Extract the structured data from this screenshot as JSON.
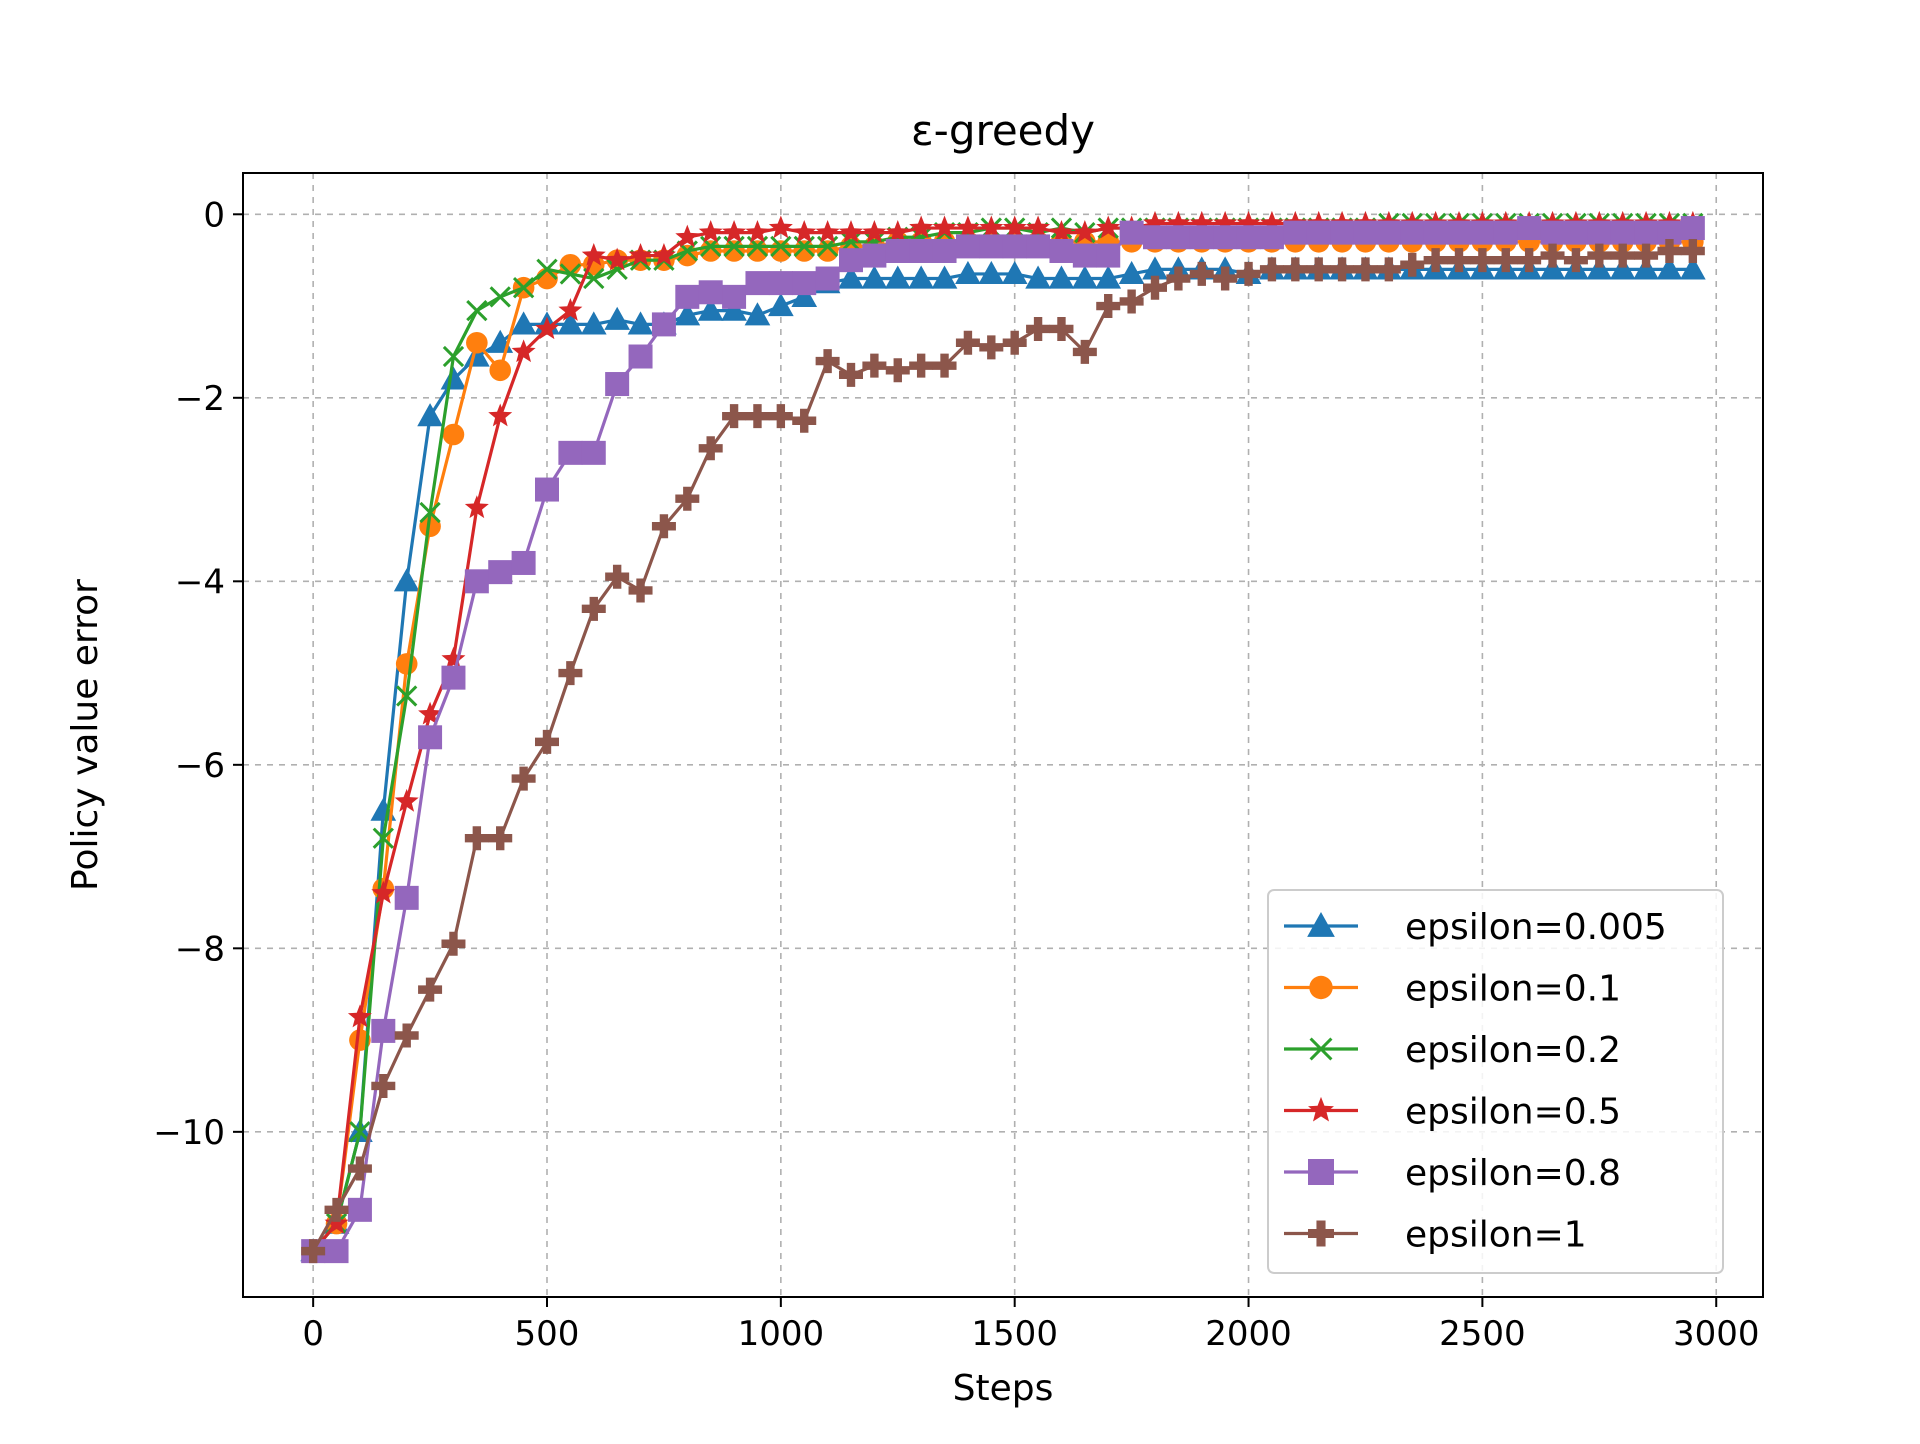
{
  "chart_data": {
    "type": "line",
    "title": "ε-greedy",
    "xlabel": "Steps",
    "ylabel": "Policy value error",
    "xlim": [
      -150,
      3100
    ],
    "ylim": [
      -11.8,
      0.45
    ],
    "xticks": [
      0,
      500,
      1000,
      1500,
      2000,
      2500,
      3000
    ],
    "xtick_labels": [
      "0",
      "500",
      "1000",
      "1500",
      "2000",
      "2500",
      "3000"
    ],
    "yticks": [
      0,
      -2,
      -4,
      -6,
      -8,
      -10
    ],
    "ytick_labels": [
      "0",
      "−2",
      "−4",
      "−6",
      "−8",
      "−10"
    ],
    "grid": true,
    "legend_position": "lower right",
    "x": [
      0,
      50,
      100,
      150,
      200,
      250,
      300,
      350,
      400,
      450,
      500,
      550,
      600,
      650,
      700,
      750,
      800,
      850,
      900,
      950,
      1000,
      1050,
      1100,
      1150,
      1200,
      1250,
      1300,
      1350,
      1400,
      1450,
      1500,
      1550,
      1600,
      1650,
      1700,
      1750,
      1800,
      1850,
      1900,
      1950,
      2000,
      2050,
      2100,
      2150,
      2200,
      2250,
      2300,
      2350,
      2400,
      2450,
      2500,
      2550,
      2600,
      2650,
      2700,
      2750,
      2800,
      2850,
      2900,
      2950
    ],
    "series": [
      {
        "name": "epsilon=0.005",
        "color": "#1f77b4",
        "marker": "triangle",
        "values": [
          -11.3,
          -11.0,
          -10.0,
          -6.5,
          -4.0,
          -2.2,
          -1.8,
          -1.55,
          -1.4,
          -1.2,
          -1.2,
          -1.2,
          -1.2,
          -1.15,
          -1.2,
          -1.2,
          -1.1,
          -1.05,
          -1.05,
          -1.1,
          -1.0,
          -0.9,
          -0.75,
          -0.7,
          -0.7,
          -0.7,
          -0.7,
          -0.7,
          -0.65,
          -0.65,
          -0.65,
          -0.7,
          -0.7,
          -0.7,
          -0.7,
          -0.65,
          -0.6,
          -0.6,
          -0.6,
          -0.6,
          -0.65,
          -0.6,
          -0.6,
          -0.6,
          -0.6,
          -0.6,
          -0.6,
          -0.6,
          -0.6,
          -0.6,
          -0.6,
          -0.6,
          -0.6,
          -0.6,
          -0.6,
          -0.6,
          -0.6,
          -0.6,
          -0.6,
          -0.6
        ]
      },
      {
        "name": "epsilon=0.1",
        "color": "#ff7f0e",
        "marker": "circle",
        "values": [
          -11.3,
          -11.0,
          -9.0,
          -7.35,
          -4.9,
          -3.4,
          -2.4,
          -1.4,
          -1.7,
          -0.8,
          -0.7,
          -0.55,
          -0.55,
          -0.5,
          -0.5,
          -0.5,
          -0.45,
          -0.4,
          -0.4,
          -0.4,
          -0.4,
          -0.4,
          -0.4,
          -0.35,
          -0.35,
          -0.3,
          -0.3,
          -0.3,
          -0.3,
          -0.3,
          -0.3,
          -0.3,
          -0.3,
          -0.3,
          -0.3,
          -0.3,
          -0.3,
          -0.3,
          -0.3,
          -0.3,
          -0.3,
          -0.3,
          -0.3,
          -0.3,
          -0.3,
          -0.3,
          -0.3,
          -0.3,
          -0.3,
          -0.3,
          -0.3,
          -0.3,
          -0.3,
          -0.3,
          -0.3,
          -0.3,
          -0.3,
          -0.3,
          -0.3,
          -0.3
        ]
      },
      {
        "name": "epsilon=0.2",
        "color": "#2ca02c",
        "marker": "x",
        "values": [
          -11.3,
          -11.0,
          -10.0,
          -6.8,
          -5.25,
          -3.25,
          -1.55,
          -1.05,
          -0.9,
          -0.8,
          -0.6,
          -0.65,
          -0.7,
          -0.6,
          -0.5,
          -0.5,
          -0.4,
          -0.35,
          -0.35,
          -0.35,
          -0.35,
          -0.35,
          -0.35,
          -0.3,
          -0.3,
          -0.25,
          -0.25,
          -0.2,
          -0.2,
          -0.15,
          -0.15,
          -0.2,
          -0.15,
          -0.2,
          -0.15,
          -0.15,
          -0.15,
          -0.15,
          -0.15,
          -0.15,
          -0.15,
          -0.15,
          -0.15,
          -0.15,
          -0.15,
          -0.15,
          -0.1,
          -0.1,
          -0.1,
          -0.1,
          -0.1,
          -0.1,
          -0.1,
          -0.1,
          -0.1,
          -0.1,
          -0.1,
          -0.1,
          -0.1,
          -0.1
        ]
      },
      {
        "name": "epsilon=0.5",
        "color": "#d62728",
        "marker": "star",
        "values": [
          -11.3,
          -11.0,
          -8.75,
          -7.4,
          -6.4,
          -5.45,
          -4.85,
          -3.2,
          -2.2,
          -1.5,
          -1.25,
          -1.05,
          -0.45,
          -0.5,
          -0.45,
          -0.45,
          -0.25,
          -0.2,
          -0.2,
          -0.2,
          -0.15,
          -0.2,
          -0.2,
          -0.2,
          -0.2,
          -0.2,
          -0.15,
          -0.15,
          -0.15,
          -0.15,
          -0.15,
          -0.15,
          -0.2,
          -0.2,
          -0.15,
          -0.15,
          -0.1,
          -0.1,
          -0.1,
          -0.1,
          -0.1,
          -0.1,
          -0.1,
          -0.1,
          -0.1,
          -0.1,
          -0.1,
          -0.1,
          -0.1,
          -0.1,
          -0.1,
          -0.1,
          -0.1,
          -0.1,
          -0.1,
          -0.1,
          -0.1,
          -0.1,
          -0.1,
          -0.1
        ]
      },
      {
        "name": "epsilon=0.8",
        "color": "#9467bd",
        "marker": "square",
        "values": [
          -11.3,
          -11.3,
          -10.85,
          -8.9,
          -7.45,
          -5.7,
          -5.05,
          -4.0,
          -3.9,
          -3.8,
          -3.0,
          -2.6,
          -2.6,
          -1.85,
          -1.55,
          -1.2,
          -0.9,
          -0.85,
          -0.9,
          -0.75,
          -0.75,
          -0.75,
          -0.7,
          -0.5,
          -0.45,
          -0.4,
          -0.4,
          -0.4,
          -0.35,
          -0.35,
          -0.35,
          -0.35,
          -0.4,
          -0.45,
          -0.45,
          -0.2,
          -0.25,
          -0.25,
          -0.25,
          -0.25,
          -0.25,
          -0.25,
          -0.2,
          -0.2,
          -0.2,
          -0.2,
          -0.2,
          -0.2,
          -0.2,
          -0.2,
          -0.2,
          -0.2,
          -0.15,
          -0.2,
          -0.2,
          -0.2,
          -0.2,
          -0.2,
          -0.2,
          -0.15
        ]
      },
      {
        "name": "epsilon=1",
        "color": "#8c564b",
        "marker": "plus",
        "values": [
          -11.3,
          -10.85,
          -10.4,
          -9.5,
          -8.95,
          -8.45,
          -7.95,
          -6.8,
          -6.8,
          -6.15,
          -5.75,
          -5.0,
          -4.3,
          -3.95,
          -4.1,
          -3.4,
          -3.1,
          -2.55,
          -2.2,
          -2.2,
          -2.2,
          -2.25,
          -1.6,
          -1.75,
          -1.65,
          -1.7,
          -1.65,
          -1.65,
          -1.4,
          -1.45,
          -1.4,
          -1.25,
          -1.25,
          -1.5,
          -1.0,
          -0.95,
          -0.8,
          -0.7,
          -0.65,
          -0.7,
          -0.65,
          -0.6,
          -0.6,
          -0.6,
          -0.6,
          -0.6,
          -0.6,
          -0.55,
          -0.5,
          -0.5,
          -0.5,
          -0.5,
          -0.5,
          -0.45,
          -0.5,
          -0.45,
          -0.45,
          -0.45,
          -0.4,
          -0.4
        ]
      }
    ]
  }
}
